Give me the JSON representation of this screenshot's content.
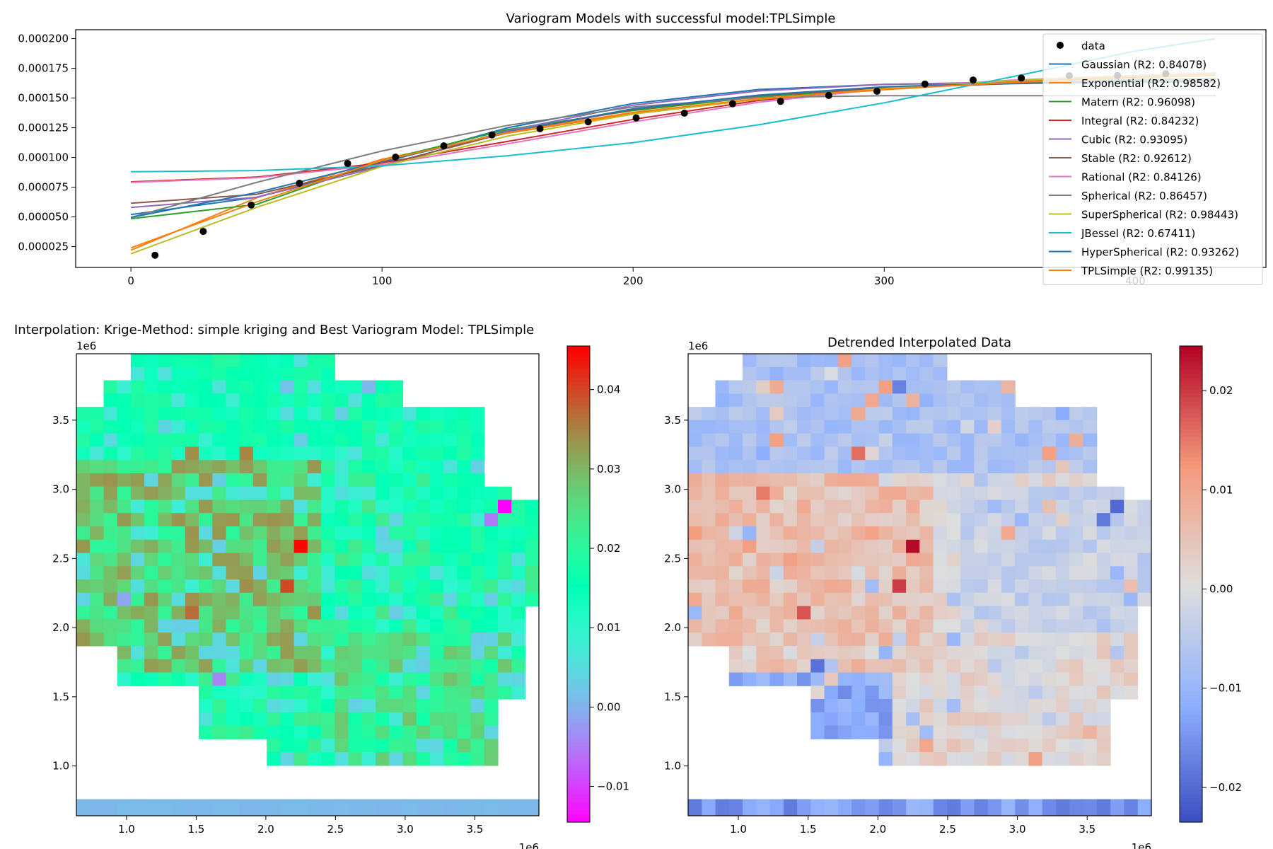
{
  "chart_data": [
    {
      "type": "line",
      "title": "Variogram Models with successful model:TPLSimple",
      "xlabel": "",
      "ylabel": "",
      "xlim": [
        -22,
        452
      ],
      "ylim": [
        7.5e-06,
        0.0002075
      ],
      "xticks": [
        0,
        100,
        200,
        300,
        400
      ],
      "xtick_labels": [
        "0",
        "100",
        "200",
        "300",
        "400"
      ],
      "yticks": [
        2.5e-05,
        5e-05,
        7.5e-05,
        0.0001,
        0.000125,
        0.00015,
        0.000175,
        0.0002
      ],
      "ytick_labels": [
        "0.000025",
        "0.000050",
        "0.000075",
        "0.000100",
        "0.000125",
        "0.000150",
        "0.000175",
        "0.000200"
      ],
      "grid": false,
      "legend_position": "top-right",
      "data_points": {
        "name": "data",
        "x": [
          9.6,
          28.8,
          47.9,
          67.1,
          86.3,
          105.4,
          124.6,
          143.8,
          162.9,
          182.1,
          201.2,
          220.4,
          239.6,
          258.7,
          277.9,
          297.1,
          316.2,
          335.4,
          354.6,
          373.7,
          392.9,
          412.1
        ],
        "y": [
          1.78e-05,
          3.78e-05,
          6e-05,
          7.83e-05,
          9.5e-05,
          0.0001003,
          0.0001098,
          0.000119,
          0.0001242,
          0.00013,
          0.0001333,
          0.0001373,
          0.0001452,
          0.0001472,
          0.0001522,
          0.0001557,
          0.0001618,
          0.0001652,
          0.0001668,
          0.0001688,
          0.000169,
          0.0001705
        ]
      },
      "series": [
        {
          "name": "Gaussian (R2: 0.84078)",
          "color": "#1f77b4",
          "x": [
            0,
            50,
            100,
            150,
            200,
            250,
            300,
            350,
            400,
            432
          ],
          "y": [
            5.2e-05,
            6.65e-05,
            9.55e-05,
            0.000125,
            0.0001455,
            0.0001572,
            0.0001615,
            0.0001628,
            0.0001633,
            0.0001635
          ]
        },
        {
          "name": "Exponential (R2: 0.98582)",
          "color": "#ff7f0e",
          "x": [
            0,
            50,
            100,
            150,
            200,
            250,
            300,
            350,
            400,
            432
          ],
          "y": [
            2.2e-05,
            6.6e-05,
            9.85e-05,
            0.0001205,
            0.000137,
            0.000149,
            0.000157,
            0.0001635,
            0.000168,
            0.00017
          ]
        },
        {
          "name": "Matern (R2: 0.96098)",
          "color": "#2ca02c",
          "x": [
            0,
            50,
            100,
            150,
            200,
            250,
            300,
            350,
            400,
            432
          ],
          "y": [
            4.85e-05,
            6.05e-05,
            9.75e-05,
            0.0001235,
            0.0001395,
            0.000151,
            0.000158,
            0.000163,
            0.0001655,
            0.0001665
          ]
        },
        {
          "name": "Integral (R2: 0.84232)",
          "color": "#d62728",
          "x": [
            0,
            50,
            100,
            150,
            200,
            250,
            300,
            350,
            400,
            432
          ],
          "y": [
            7.95e-05,
            8.35e-05,
            9.55e-05,
            0.0001135,
            0.000132,
            0.000148,
            0.0001585,
            0.0001645,
            0.000168,
            0.0001695
          ]
        },
        {
          "name": "Cubic (R2: 0.93095)",
          "color": "#9467bd",
          "x": [
            0,
            50,
            100,
            150,
            200,
            250,
            300,
            350,
            400,
            432
          ],
          "y": [
            5.8e-05,
            6.65e-05,
            9.25e-05,
            0.0001225,
            0.000144,
            0.000156,
            0.0001615,
            0.0001635,
            0.0001645,
            0.0001648
          ]
        },
        {
          "name": "Stable (R2: 0.92612)",
          "color": "#8c564b",
          "x": [
            0,
            50,
            100,
            150,
            200,
            250,
            300,
            350,
            400,
            432
          ],
          "y": [
            6.15e-05,
            6.9e-05,
            9.35e-05,
            0.000121,
            0.0001405,
            0.000152,
            0.0001585,
            0.000162,
            0.000164,
            0.0001645
          ]
        },
        {
          "name": "Rational (R2: 0.84126)",
          "color": "#e377c2",
          "x": [
            0,
            50,
            100,
            150,
            200,
            250,
            300,
            350,
            400,
            432
          ],
          "y": [
            7.9e-05,
            8.3e-05,
            9.4e-05,
            0.0001115,
            0.00013,
            0.0001465,
            0.000158,
            0.000165,
            0.000169,
            0.000171
          ]
        },
        {
          "name": "Spherical (R2: 0.86457)",
          "color": "#7f7f7f",
          "x": [
            0,
            50,
            100,
            150,
            200,
            250,
            300,
            350,
            400,
            432
          ],
          "y": [
            4.95e-05,
            7.9e-05,
            0.0001055,
            0.000127,
            0.0001425,
            0.0001505,
            0.000152,
            0.000152,
            0.000152,
            0.000152
          ]
        },
        {
          "name": "SuperSpherical (R2: 0.98443)",
          "color": "#bcbd22",
          "x": [
            0,
            50,
            100,
            150,
            200,
            250,
            300,
            350,
            400,
            432
          ],
          "y": [
            1.9e-05,
            5.8e-05,
            9.25e-05,
            0.000118,
            0.0001365,
            0.000149,
            0.000158,
            0.0001645,
            0.0001685,
            0.00017
          ]
        },
        {
          "name": "JBessel (R2: 0.67411)",
          "color": "#17becf",
          "x": [
            0,
            50,
            100,
            150,
            200,
            250,
            300,
            350,
            400,
            432
          ],
          "y": [
            8.8e-05,
            8.9e-05,
            9.3e-05,
            0.0001015,
            0.0001125,
            0.0001275,
            0.000146,
            0.0001675,
            0.0001895,
            0.0002
          ]
        },
        {
          "name": "HyperSpherical (R2: 0.93262)",
          "color": "#1f77b4",
          "x": [
            0,
            50,
            100,
            150,
            200,
            250,
            300,
            350,
            400,
            432
          ],
          "y": [
            4.95e-05,
            7.05e-05,
            9.65e-05,
            0.0001215,
            0.000141,
            0.0001525,
            0.0001595,
            0.0001625,
            0.0001635,
            0.0001638
          ]
        },
        {
          "name": "TPLSimple (R2: 0.99135)",
          "color": "#ff7f0e",
          "x": [
            0,
            50,
            100,
            150,
            200,
            250,
            300,
            350,
            400,
            432
          ],
          "y": [
            2.4e-05,
            6.25e-05,
            9.75e-05,
            0.000121,
            0.000138,
            0.0001495,
            0.0001575,
            0.000163,
            0.000167,
            0.000169
          ]
        }
      ]
    },
    {
      "type": "heatmap",
      "title": "Interpolation: Krige-Method: simple kriging and Best Variogram Model: TPLSimple",
      "colormap": "rainbow",
      "xlim": [
        640000,
        3960000
      ],
      "ylim": [
        640000,
        3980000
      ],
      "xticks": [
        1000000,
        1500000,
        2000000,
        2500000,
        3000000,
        3500000
      ],
      "xtick_labels": [
        "1.0",
        "1.5",
        "2.0",
        "2.5",
        "3.0",
        "3.5"
      ],
      "yticks": [
        1000000,
        1500000,
        2000000,
        2500000,
        3000000,
        3500000
      ],
      "ytick_labels": [
        "1.0",
        "1.5",
        "2.0",
        "2.5",
        "3.0",
        "3.5"
      ],
      "x_offset_label": "1e6",
      "y_offset_label": "1e6",
      "colorbar": {
        "vmin": -0.0145,
        "vmax": 0.0455,
        "ticks": [
          0.04,
          0.03,
          0.02,
          0.01,
          0.0,
          -0.01
        ],
        "tick_labels": [
          "0.04",
          "0.03",
          "0.02",
          "0.01",
          "0.00",
          "−0.01"
        ]
      },
      "grid": {
        "cols": 34,
        "rows": 31,
        "x0": 640000,
        "cell_x": 97600,
        "y_top": 3980000,
        "cell_y": 96000
      },
      "bottom_band": {
        "y_range": [
          640000,
          760000
        ],
        "value": 0.001
      },
      "base_value": 0.018,
      "hotspots": [
        {
          "col": 16,
          "row": 14,
          "value": 0.045
        },
        {
          "col": 15,
          "row": 17,
          "value": 0.04
        },
        {
          "col": 8,
          "row": 19,
          "value": 0.037
        },
        {
          "col": 12,
          "row": 7,
          "value": 0.035
        },
        {
          "col": 8,
          "row": 7,
          "value": 0.034
        },
        {
          "col": 5,
          "row": 10,
          "value": 0.033
        },
        {
          "col": 12,
          "row": 17,
          "value": 0.034
        },
        {
          "col": 31,
          "row": 11,
          "value": -0.0145
        },
        {
          "col": 30,
          "row": 12,
          "value": -0.005
        },
        {
          "col": 10,
          "row": 24,
          "value": -0.004
        },
        {
          "col": 3,
          "row": 18,
          "value": -0.001
        },
        {
          "col": 21,
          "row": 2,
          "value": 0.001
        },
        {
          "col": 15,
          "row": 2,
          "value": 0.002
        }
      ]
    },
    {
      "type": "heatmap",
      "title": "Detrended Interpolated Data",
      "colormap": "coolwarm",
      "xlim": [
        640000,
        3960000
      ],
      "ylim": [
        640000,
        3980000
      ],
      "xticks": [
        1000000,
        1500000,
        2000000,
        2500000,
        3000000,
        3500000
      ],
      "xtick_labels": [
        "1.0",
        "1.5",
        "2.0",
        "2.5",
        "3.0",
        "3.5"
      ],
      "yticks": [
        1000000,
        1500000,
        2000000,
        2500000,
        3000000,
        3500000
      ],
      "ytick_labels": [
        "1.0",
        "1.5",
        "2.0",
        "2.5",
        "3.0",
        "3.5"
      ],
      "x_offset_label": "1e6",
      "y_offset_label": "1e6",
      "colorbar": {
        "vmin": -0.0235,
        "vmax": 0.0245,
        "ticks": [
          0.02,
          0.01,
          0.0,
          -0.01,
          -0.02
        ],
        "tick_labels": [
          "0.02",
          "0.01",
          "0.00",
          "−0.01",
          "−0.02"
        ]
      },
      "bottom_band": {
        "y_range": [
          640000,
          760000
        ],
        "value": -0.015
      },
      "hotspots": [
        {
          "col": 16,
          "row": 14,
          "value": 0.024
        },
        {
          "col": 15,
          "row": 17,
          "value": 0.02
        },
        {
          "col": 8,
          "row": 19,
          "value": 0.018
        },
        {
          "col": 12,
          "row": 7,
          "value": 0.016
        },
        {
          "col": 5,
          "row": 10,
          "value": 0.015
        },
        {
          "col": 31,
          "row": 11,
          "value": -0.02
        },
        {
          "col": 30,
          "row": 12,
          "value": -0.018
        },
        {
          "col": 9,
          "row": 23,
          "value": -0.019
        },
        {
          "col": 15,
          "row": 2,
          "value": -0.017
        }
      ]
    }
  ]
}
